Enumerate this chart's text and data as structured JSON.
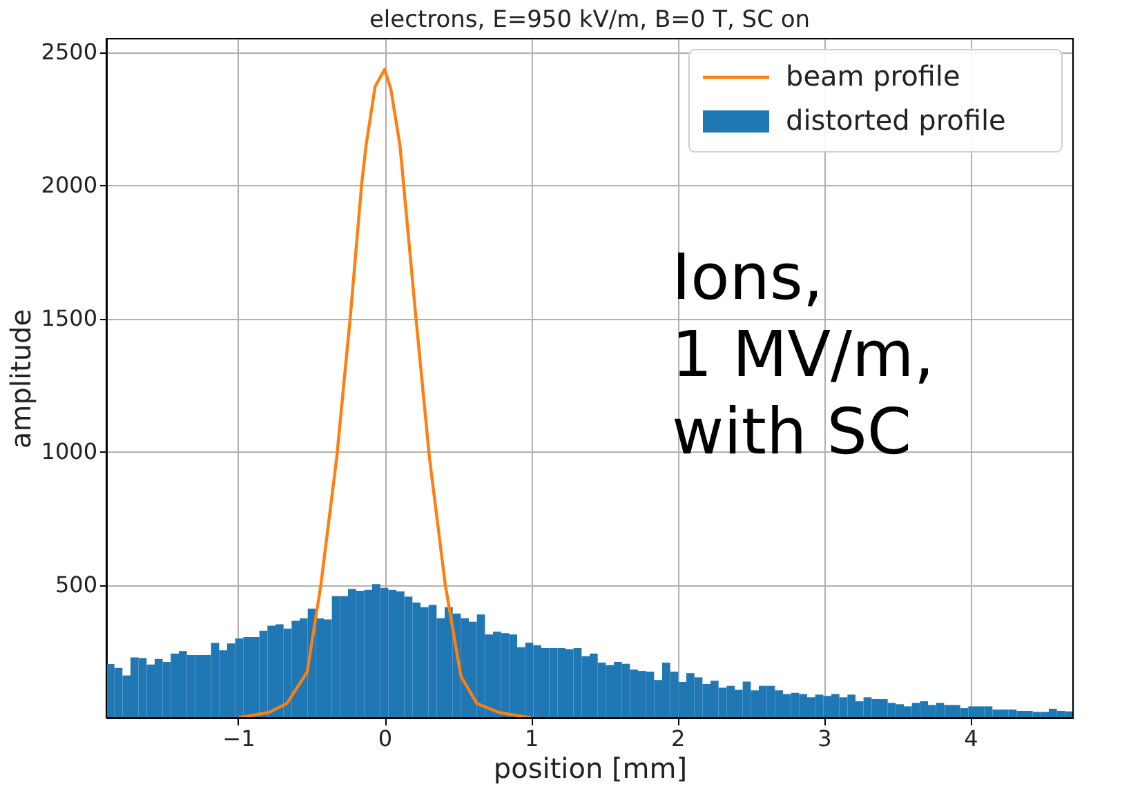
{
  "chart_data": {
    "type": "histogram",
    "title": "electrons, E=950 kV/m, B=0 T, SC on",
    "xlabel": "position [mm]",
    "ylabel": "amplitude",
    "annotations": [
      "Ions,\n1 MV/m,\nwith SC"
    ],
    "bins": [
      -1.9,
      -1.845,
      -1.79,
      -1.735,
      -1.68,
      -1.625,
      -1.57,
      -1.515,
      -1.46,
      -1.405,
      -1.35,
      -1.295,
      -1.24,
      -1.185,
      -1.13,
      -1.075,
      -1.02,
      -0.965,
      -0.91,
      -0.855,
      -0.8,
      -0.745,
      -0.69,
      -0.635,
      -0.58,
      -0.525,
      -0.47,
      -0.415,
      -0.36,
      -0.305,
      -0.25,
      -0.195,
      -0.14,
      -0.085,
      -0.03,
      0.025,
      0.08,
      0.135,
      0.19,
      0.245,
      0.3,
      0.355,
      0.41,
      0.465,
      0.52,
      0.575,
      0.63,
      0.685,
      0.74,
      0.795,
      0.85,
      0.905,
      0.96,
      1.015,
      1.07,
      1.125,
      1.18,
      1.235,
      1.29,
      1.345,
      1.4,
      1.455,
      1.51,
      1.565,
      1.62,
      1.675,
      1.73,
      1.785,
      1.84,
      1.895,
      1.95,
      2.005,
      2.06,
      2.115,
      2.17,
      2.225,
      2.28,
      2.335,
      2.39,
      2.445,
      2.5,
      2.555,
      2.61,
      2.665,
      2.72,
      2.775,
      2.83,
      2.885,
      2.94,
      2.995,
      3.05,
      3.105,
      3.16,
      3.215,
      3.27,
      3.325,
      3.38,
      3.435,
      3.49,
      3.545,
      3.6,
      3.655,
      3.71,
      3.765,
      3.82,
      3.875,
      3.93,
      3.985,
      4.04,
      4.095,
      4.15,
      4.205,
      4.26,
      4.315,
      4.37,
      4.425,
      4.48,
      4.535,
      4.59,
      4.645,
      4.7
    ],
    "series": [
      {
        "name": "beam profile",
        "type": "line",
        "color": "#ff7f0e",
        "x": [
          -1.0,
          -0.79,
          -0.667,
          -0.528,
          -0.435,
          -0.327,
          -0.234,
          -0.157,
          -0.127,
          -0.065,
          0.0,
          0.043,
          0.105,
          0.213,
          0.306,
          0.414,
          0.521,
          0.63,
          0.78,
          1.0
        ],
        "values": [
          0,
          20,
          54,
          173,
          500,
          977,
          1507,
          2003,
          2148,
          2370,
          2435,
          2360,
          2148,
          1507,
          977,
          500,
          156,
          54,
          20,
          0
        ]
      },
      {
        "name": "distorted profile",
        "color": "#1f77b4",
        "values": [
          202,
          187,
          159,
          227,
          224,
          200,
          221,
          210,
          241,
          251,
          236,
          236,
          236,
          281,
          253,
          279,
          298,
          303,
          303,
          327,
          346,
          351,
          335,
          364,
          373,
          410,
          373,
          369,
          457,
          457,
          484,
          477,
          480,
          502,
          488,
          480,
          475,
          455,
          433,
          415,
          424,
          374,
          415,
          391,
          374,
          361,
          388,
          313,
          323,
          318,
          313,
          265,
          282,
          272,
          262,
          262,
          262,
          258,
          262,
          231,
          241,
          207,
          198,
          210,
          203,
          181,
          176,
          173,
          142,
          207,
          173,
          135,
          168,
          152,
          127,
          139,
          113,
          120,
          105,
          136,
          103,
          120,
          120,
          103,
          89,
          94,
          89,
          77,
          87,
          82,
          89,
          77,
          87,
          62,
          77,
          70,
          70,
          56,
          51,
          43,
          56,
          62,
          48,
          56,
          48,
          48,
          36,
          43,
          43,
          43,
          31,
          31,
          31,
          26,
          26,
          22,
          22,
          34,
          26,
          24
        ]
      }
    ],
    "xlim": [
      -1.9,
      4.7
    ],
    "ylim": [
      0,
      2550
    ],
    "xticks": [
      -1,
      0,
      1,
      2,
      3,
      4
    ],
    "yticks": [
      500,
      1000,
      1500,
      2000,
      2500
    ],
    "grid": true,
    "legend": "top right"
  }
}
